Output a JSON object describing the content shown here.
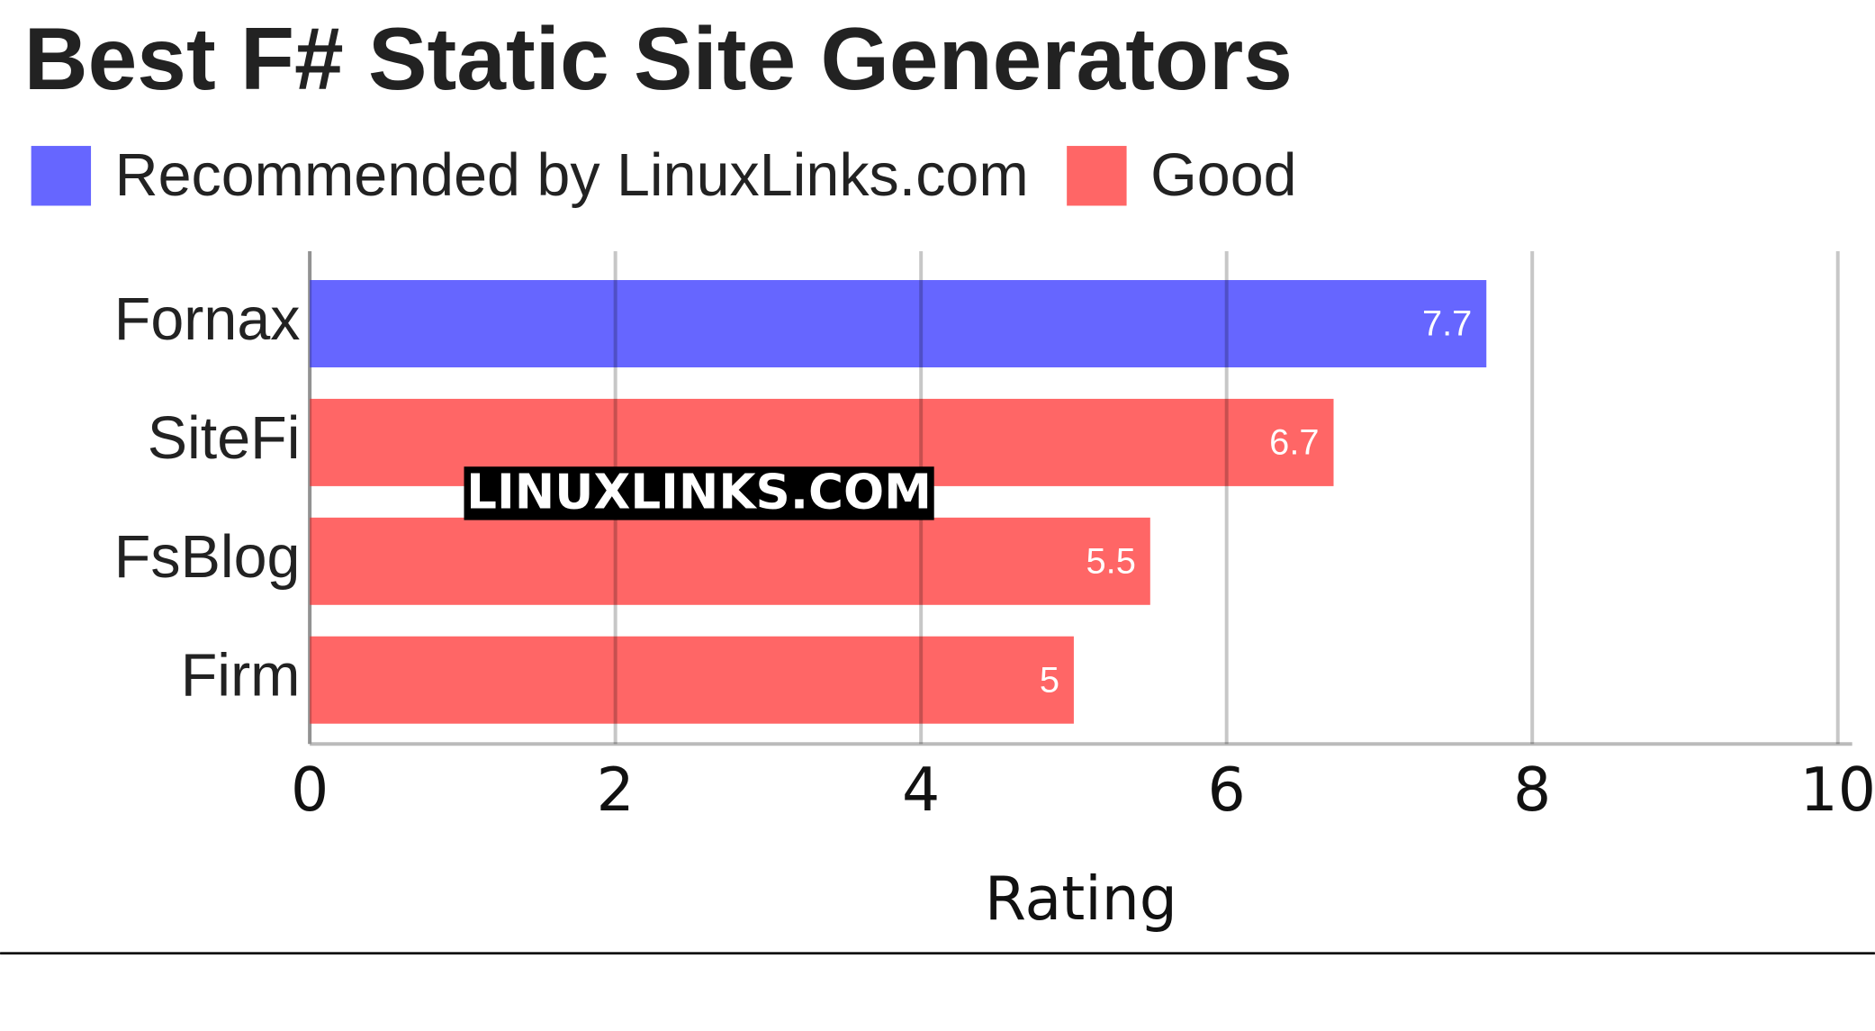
{
  "chart_data": {
    "type": "bar",
    "orientation": "horizontal",
    "title": "Best F# Static Site Generators",
    "categories": [
      "Fornax",
      "SiteFi",
      "FsBlog",
      "Firm"
    ],
    "series": [
      {
        "name": "Recommended by LinuxLinks.com",
        "color": "#6666ff",
        "values": [
          7.7,
          null,
          null,
          null
        ]
      },
      {
        "name": "Good",
        "color": "#ff6666",
        "values": [
          null,
          6.7,
          5.5,
          5
        ]
      }
    ],
    "xlim": [
      0,
      10
    ],
    "xticks": [
      0,
      2,
      4,
      6,
      8,
      10
    ],
    "grid": true,
    "x_label": "Rating",
    "watermark": "LINUXLINKS.COM",
    "legend": "top-left"
  }
}
